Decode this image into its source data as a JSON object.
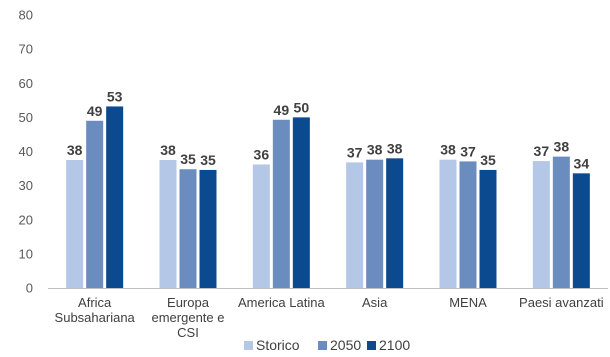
{
  "chart_data": {
    "type": "bar",
    "title": "",
    "xlabel": "",
    "ylabel": "",
    "ylim": [
      0,
      80
    ],
    "yticks": [
      0,
      10,
      20,
      30,
      40,
      50,
      60,
      70,
      80
    ],
    "grid": false,
    "legend_position": "bottom",
    "categories": [
      [
        "Africa",
        "Subsahariana"
      ],
      [
        "Europa",
        "emergente e",
        "CSI"
      ],
      [
        "America Latina"
      ],
      [
        "Asia"
      ],
      [
        "MENA"
      ],
      [
        "Paesi avanzati"
      ]
    ],
    "series": [
      {
        "name": "Storico",
        "color": "#B4C7E7",
        "values": [
          38,
          38,
          36,
          37,
          38,
          37
        ]
      },
      {
        "name": "2050",
        "color": "#6B8CBE",
        "values": [
          49,
          35,
          49,
          38,
          37,
          38
        ]
      },
      {
        "name": "2100",
        "color": "#0B4A8E",
        "values": [
          53,
          35,
          50,
          38,
          35,
          34
        ]
      }
    ],
    "actual_values": [
      [
        37.5,
        37.5,
        36.2,
        36.8,
        37.6,
        37.2
      ],
      [
        49.0,
        34.8,
        49.3,
        37.6,
        37.1,
        38.5
      ],
      [
        53.2,
        34.6,
        50.0,
        38.0,
        34.6,
        33.6
      ]
    ]
  }
}
